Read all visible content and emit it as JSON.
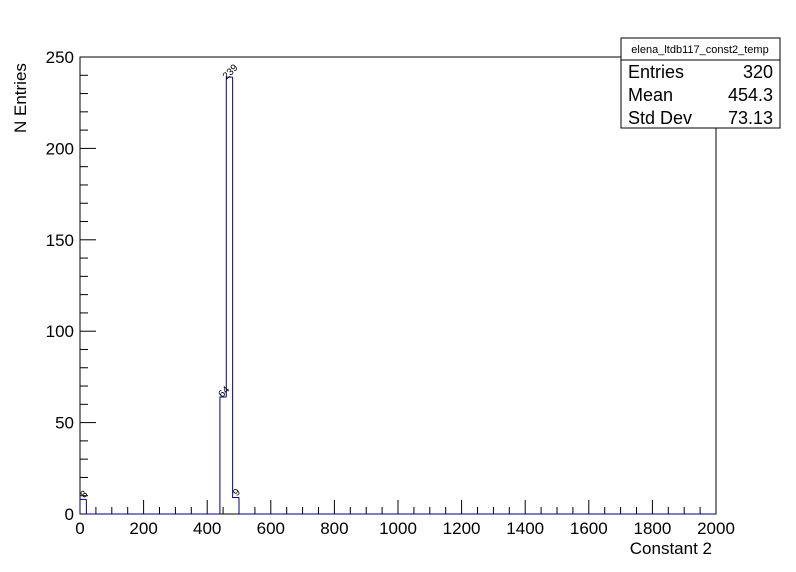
{
  "chart_data": {
    "type": "histogram",
    "xlabel": "Constant 2",
    "ylabel": "N Entries",
    "bins": [
      0,
      20,
      40,
      60,
      80,
      100,
      120,
      140,
      160,
      180,
      200,
      220,
      240,
      260,
      280,
      300,
      320,
      340,
      360,
      380,
      400,
      420,
      440,
      460,
      480,
      500,
      520,
      540,
      560,
      580,
      600,
      620,
      640,
      660,
      680,
      700,
      720,
      740,
      760,
      780,
      800,
      820,
      840,
      860,
      880,
      900,
      920,
      940,
      960,
      980,
      1000,
      1020,
      1040,
      1060,
      1080,
      1100,
      1120,
      1140,
      1160,
      1180,
      1200,
      1220,
      1240,
      1260,
      1280,
      1300,
      1320,
      1340,
      1360,
      1380,
      1400,
      1420,
      1440,
      1460,
      1480,
      1500,
      1520,
      1540,
      1560,
      1580,
      1600,
      1620,
      1640,
      1660,
      1680,
      1700,
      1720,
      1740,
      1760,
      1780,
      1800,
      1820,
      1840,
      1860,
      1880,
      1900,
      1920,
      1940,
      1960,
      1980,
      2000
    ],
    "values": [
      8,
      0,
      0,
      0,
      0,
      0,
      0,
      0,
      0,
      0,
      0,
      0,
      0,
      0,
      0,
      0,
      0,
      0,
      0,
      0,
      0,
      0,
      64,
      239,
      9,
      0,
      0,
      0,
      0,
      0,
      0,
      0,
      0,
      0,
      0,
      0,
      0,
      0,
      0,
      0,
      0,
      0,
      0,
      0,
      0,
      0,
      0,
      0,
      0,
      0,
      0,
      0,
      0,
      0,
      0,
      0,
      0,
      0,
      0,
      0,
      0,
      0,
      0,
      0,
      0,
      0,
      0,
      0,
      0,
      0,
      0,
      0,
      0,
      0,
      0,
      0,
      0,
      0,
      0,
      0,
      0,
      0,
      0,
      0,
      0,
      0,
      0,
      0,
      0,
      0,
      0,
      0,
      0,
      0,
      0,
      0,
      0,
      0,
      0,
      0
    ],
    "color": "#000080",
    "xlim": [
      0,
      2000
    ],
    "xticks": [
      0,
      200,
      400,
      600,
      800,
      1000,
      1200,
      1400,
      1600,
      1800,
      2000
    ],
    "ylim": [
      0,
      250
    ],
    "yticks": [
      0,
      50,
      100,
      150,
      200,
      250
    ],
    "stats": {
      "title": "elena_ltdb117_const2_temp",
      "rows": [
        {
          "label": "Entries",
          "value": 320
        },
        {
          "label": "Mean",
          "value": 454.3
        },
        {
          "label": "Std Dev",
          "value": 73.13
        }
      ]
    }
  }
}
